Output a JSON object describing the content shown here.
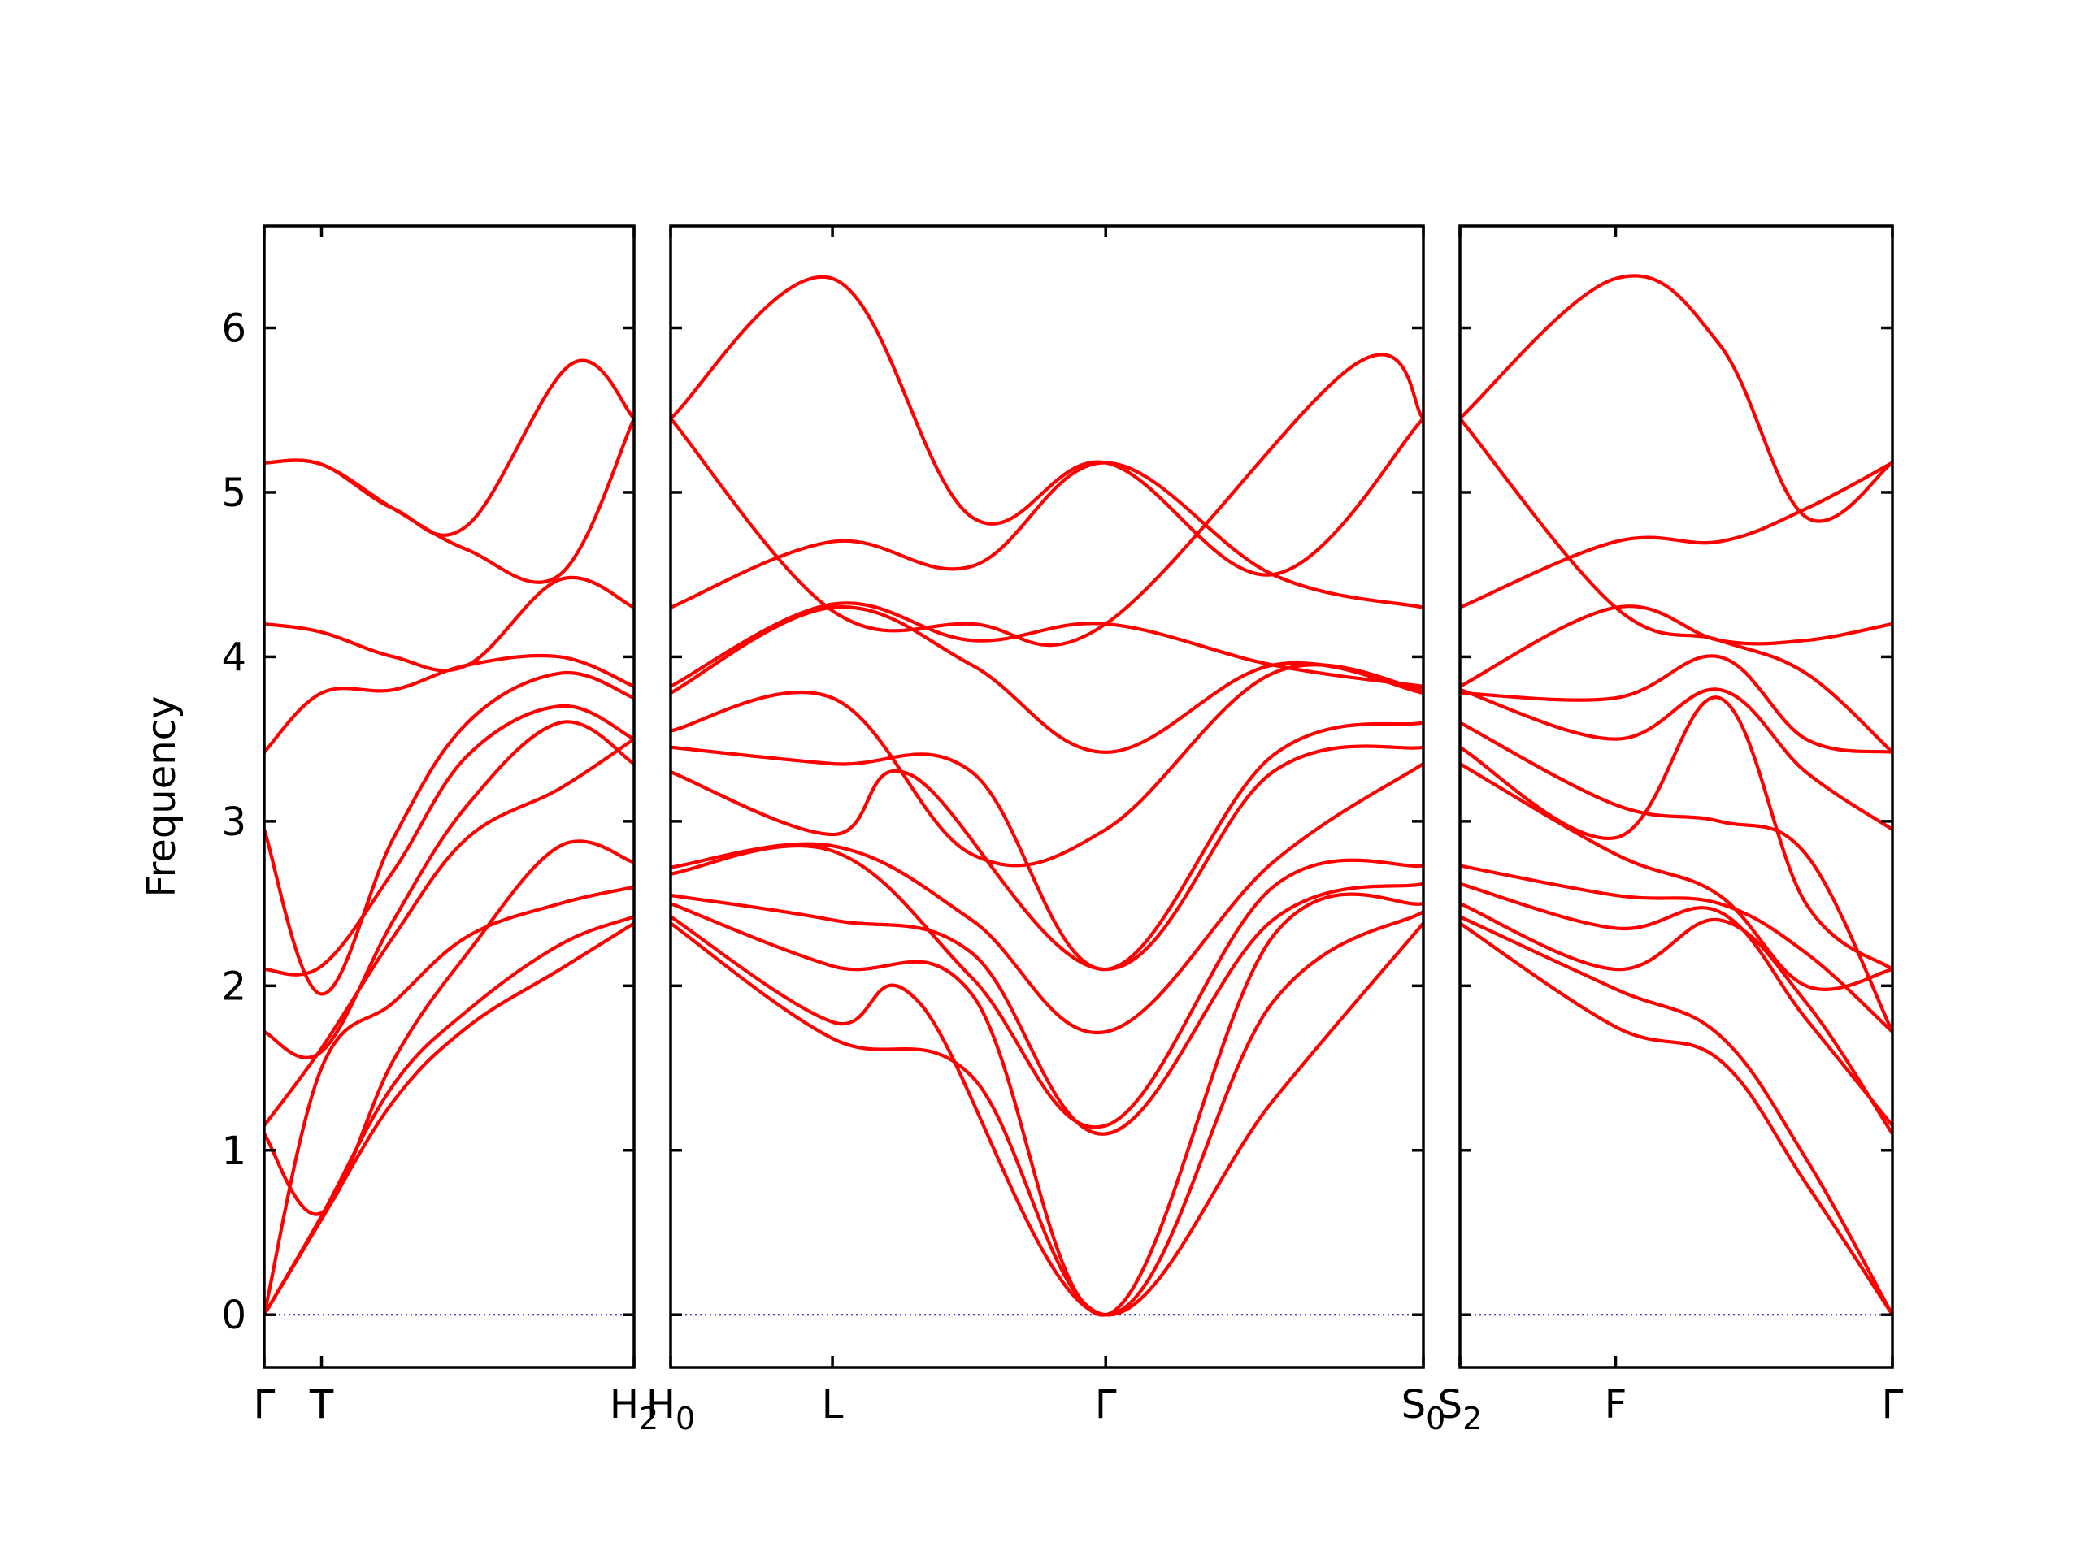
{
  "chart_data": {
    "type": "line",
    "ylabel": "Frequency",
    "ylim": [
      -0.32,
      6.62
    ],
    "yticks": [
      "0",
      "1",
      "2",
      "3",
      "4",
      "5",
      "6"
    ],
    "yticks_values": [
      0,
      1,
      2,
      3,
      4,
      5,
      6
    ],
    "colors": {
      "band": "#ff0000",
      "zero": "#0000cc",
      "frame": "#000000"
    },
    "grid": false,
    "panels": [
      {
        "name": "panel-1",
        "xrange": [
          0,
          1
        ],
        "ticks": [
          {
            "x": 0.0,
            "label": "Γ"
          },
          {
            "x": 0.155,
            "label": "T"
          },
          {
            "x": 1.0,
            "label": "H",
            "sub": "2"
          }
        ],
        "bands": [
          [
            [
              0,
              0
            ],
            [
              0.155,
              0.58
            ],
            [
              0.35,
              1.3
            ],
            [
              0.55,
              1.75
            ],
            [
              0.8,
              2.1
            ],
            [
              1,
              2.38
            ]
          ],
          [
            [
              0,
              0
            ],
            [
              0.155,
              0.6
            ],
            [
              0.35,
              1.4
            ],
            [
              0.55,
              1.85
            ],
            [
              0.8,
              2.25
            ],
            [
              1,
              2.42
            ]
          ],
          [
            [
              0,
              0
            ],
            [
              0.155,
              1.5
            ],
            [
              0.35,
              1.9
            ],
            [
              0.55,
              2.3
            ],
            [
              0.8,
              2.5
            ],
            [
              1,
              2.6
            ]
          ],
          [
            [
              0,
              1.1
            ],
            [
              0.155,
              0.62
            ],
            [
              0.35,
              1.55
            ],
            [
              0.55,
              2.2
            ],
            [
              0.8,
              2.85
            ],
            [
              1,
              2.75
            ]
          ],
          [
            [
              0,
              1.15
            ],
            [
              0.155,
              1.62
            ],
            [
              0.35,
              2.3
            ],
            [
              0.55,
              2.9
            ],
            [
              0.8,
              3.2
            ],
            [
              1,
              3.5
            ]
          ],
          [
            [
              0,
              1.72
            ],
            [
              0.155,
              1.6
            ],
            [
              0.35,
              2.4
            ],
            [
              0.55,
              3.1
            ],
            [
              0.8,
              3.6
            ],
            [
              1,
              3.35
            ]
          ],
          [
            [
              0,
              2.1
            ],
            [
              0.155,
              2.12
            ],
            [
              0.35,
              2.7
            ],
            [
              0.55,
              3.4
            ],
            [
              0.8,
              3.7
            ],
            [
              1,
              3.5
            ]
          ],
          [
            [
              0,
              2.95
            ],
            [
              0.155,
              1.95
            ],
            [
              0.35,
              2.9
            ],
            [
              0.55,
              3.6
            ],
            [
              0.8,
              3.9
            ],
            [
              1,
              3.75
            ]
          ],
          [
            [
              0,
              3.42
            ],
            [
              0.155,
              3.78
            ],
            [
              0.35,
              3.8
            ],
            [
              0.55,
              3.95
            ],
            [
              0.8,
              4.0
            ],
            [
              1,
              3.82
            ]
          ],
          [
            [
              0,
              4.2
            ],
            [
              0.155,
              4.15
            ],
            [
              0.35,
              4.0
            ],
            [
              0.55,
              3.95
            ],
            [
              0.8,
              4.47
            ],
            [
              1,
              4.3
            ]
          ],
          [
            [
              0,
              5.18
            ],
            [
              0.155,
              5.17
            ],
            [
              0.35,
              4.9
            ],
            [
              0.55,
              4.65
            ],
            [
              0.8,
              4.5
            ],
            [
              1,
              5.45
            ]
          ],
          [
            [
              0,
              5.18
            ],
            [
              0.155,
              5.17
            ],
            [
              0.35,
              4.9
            ],
            [
              0.55,
              4.8
            ],
            [
              0.83,
              5.78
            ],
            [
              1,
              5.45
            ]
          ]
        ]
      },
      {
        "name": "panel-2",
        "xrange": [
          0,
          1
        ],
        "ticks": [
          {
            "x": 0.0,
            "label": "H",
            "sub": "0"
          },
          {
            "x": 0.215,
            "label": "L"
          },
          {
            "x": 0.578,
            "label": "Γ"
          },
          {
            "x": 1.0,
            "label": "S",
            "sub": "0"
          }
        ],
        "bands": [
          [
            [
              0,
              2.38
            ],
            [
              0.215,
              1.68
            ],
            [
              0.4,
              1.45
            ],
            [
              0.578,
              0
            ],
            [
              0.8,
              1.3
            ],
            [
              1,
              2.38
            ]
          ],
          [
            [
              0,
              2.42
            ],
            [
              0.215,
              1.78
            ],
            [
              0.33,
              1.9
            ],
            [
              0.578,
              0
            ],
            [
              0.8,
              1.9
            ],
            [
              1,
              2.45
            ]
          ],
          [
            [
              0,
              2.5
            ],
            [
              0.215,
              2.12
            ],
            [
              0.4,
              1.95
            ],
            [
              0.578,
              0
            ],
            [
              0.8,
              2.3
            ],
            [
              1,
              2.5
            ]
          ],
          [
            [
              0,
              2.55
            ],
            [
              0.215,
              2.4
            ],
            [
              0.4,
              2.2
            ],
            [
              0.578,
              1.1
            ],
            [
              0.8,
              2.4
            ],
            [
              1,
              2.62
            ]
          ],
          [
            [
              0,
              2.68
            ],
            [
              0.215,
              2.82
            ],
            [
              0.4,
              2.05
            ],
            [
              0.578,
              1.15
            ],
            [
              0.8,
              2.6
            ],
            [
              1,
              2.73
            ]
          ],
          [
            [
              0,
              2.72
            ],
            [
              0.215,
              2.85
            ],
            [
              0.4,
              2.4
            ],
            [
              0.578,
              1.72
            ],
            [
              0.8,
              2.75
            ],
            [
              1,
              3.35
            ]
          ],
          [
            [
              0,
              3.3
            ],
            [
              0.215,
              2.92
            ],
            [
              0.32,
              3.28
            ],
            [
              0.578,
              2.1
            ],
            [
              0.8,
              3.3
            ],
            [
              1,
              3.45
            ]
          ],
          [
            [
              0,
              3.45
            ],
            [
              0.215,
              3.35
            ],
            [
              0.4,
              3.3
            ],
            [
              0.578,
              2.1
            ],
            [
              0.8,
              3.4
            ],
            [
              1,
              3.6
            ]
          ],
          [
            [
              0,
              3.55
            ],
            [
              0.215,
              3.75
            ],
            [
              0.4,
              2.8
            ],
            [
              0.578,
              2.95
            ],
            [
              0.8,
              3.9
            ],
            [
              1,
              3.8
            ]
          ],
          [
            [
              0,
              3.78
            ],
            [
              0.215,
              4.3
            ],
            [
              0.4,
              3.95
            ],
            [
              0.578,
              3.42
            ],
            [
              0.8,
              3.95
            ],
            [
              1,
              3.78
            ]
          ],
          [
            [
              0,
              3.82
            ],
            [
              0.215,
              4.32
            ],
            [
              0.4,
              4.1
            ],
            [
              0.578,
              4.2
            ],
            [
              0.8,
              3.95
            ],
            [
              1,
              3.82
            ]
          ],
          [
            [
              0,
              4.3
            ],
            [
              0.215,
              4.7
            ],
            [
              0.4,
              4.55
            ],
            [
              0.578,
              5.18
            ],
            [
              0.8,
              4.5
            ],
            [
              1,
              4.3
            ]
          ],
          [
            [
              0,
              5.45
            ],
            [
              0.215,
              6.3
            ],
            [
              0.4,
              4.85
            ],
            [
              0.578,
              5.18
            ],
            [
              0.8,
              4.5
            ],
            [
              1,
              5.45
            ]
          ],
          [
            [
              0,
              5.45
            ],
            [
              0.215,
              4.28
            ],
            [
              0.4,
              4.2
            ],
            [
              0.578,
              4.2
            ],
            [
              0.91,
              5.78
            ],
            [
              1,
              5.45
            ]
          ]
        ]
      },
      {
        "name": "panel-3",
        "xrange": [
          0,
          1
        ],
        "ticks": [
          {
            "x": 0.0,
            "label": "S",
            "sub": "2"
          },
          {
            "x": 0.36,
            "label": "F"
          },
          {
            "x": 1.0,
            "label": "Γ"
          }
        ],
        "bands": [
          [
            [
              0,
              2.38
            ],
            [
              0.36,
              1.75
            ],
            [
              0.6,
              1.55
            ],
            [
              0.8,
              0.8
            ],
            [
              1,
              0
            ]
          ],
          [
            [
              0,
              2.42
            ],
            [
              0.36,
              1.98
            ],
            [
              0.6,
              1.7
            ],
            [
              0.8,
              0.95
            ],
            [
              1,
              0
            ]
          ],
          [
            [
              0,
              2.5
            ],
            [
              0.36,
              2.1
            ],
            [
              0.6,
              2.4
            ],
            [
              0.8,
              1.9
            ],
            [
              1,
              1.1
            ]
          ],
          [
            [
              0,
              2.62
            ],
            [
              0.36,
              2.35
            ],
            [
              0.6,
              2.45
            ],
            [
              0.8,
              1.8
            ],
            [
              1,
              1.15
            ]
          ],
          [
            [
              0,
              2.73
            ],
            [
              0.36,
              2.55
            ],
            [
              0.6,
              2.5
            ],
            [
              0.8,
              2.2
            ],
            [
              1,
              1.72
            ]
          ],
          [
            [
              0,
              3.35
            ],
            [
              0.36,
              2.8
            ],
            [
              0.6,
              2.55
            ],
            [
              0.8,
              2.0
            ],
            [
              1,
              2.1
            ]
          ],
          [
            [
              0,
              3.45
            ],
            [
              0.36,
              2.9
            ],
            [
              0.6,
              3.75
            ],
            [
              0.8,
              2.5
            ],
            [
              1,
              2.1
            ]
          ],
          [
            [
              0,
              3.6
            ],
            [
              0.36,
              3.1
            ],
            [
              0.6,
              3.0
            ],
            [
              0.8,
              2.8
            ],
            [
              1,
              1.72
            ]
          ],
          [
            [
              0,
              3.8
            ],
            [
              0.36,
              3.5
            ],
            [
              0.6,
              3.8
            ],
            [
              0.8,
              3.3
            ],
            [
              1,
              2.95
            ]
          ],
          [
            [
              0,
              3.78
            ],
            [
              0.36,
              3.75
            ],
            [
              0.6,
              4.0
            ],
            [
              0.8,
              3.5
            ],
            [
              1,
              3.42
            ]
          ],
          [
            [
              0,
              3.82
            ],
            [
              0.36,
              4.3
            ],
            [
              0.6,
              4.1
            ],
            [
              0.8,
              4.1
            ],
            [
              1,
              4.2
            ]
          ],
          [
            [
              0,
              4.3
            ],
            [
              0.36,
              4.7
            ],
            [
              0.6,
              4.7
            ],
            [
              0.8,
              4.9
            ],
            [
              1,
              5.18
            ]
          ],
          [
            [
              0,
              5.45
            ],
            [
              0.36,
              6.3
            ],
            [
              0.6,
              5.9
            ],
            [
              0.8,
              4.85
            ],
            [
              1,
              5.18
            ]
          ],
          [
            [
              0,
              5.45
            ],
            [
              0.36,
              4.3
            ],
            [
              0.6,
              4.1
            ],
            [
              0.8,
              3.9
            ],
            [
              1,
              3.42
            ]
          ]
        ]
      }
    ]
  }
}
